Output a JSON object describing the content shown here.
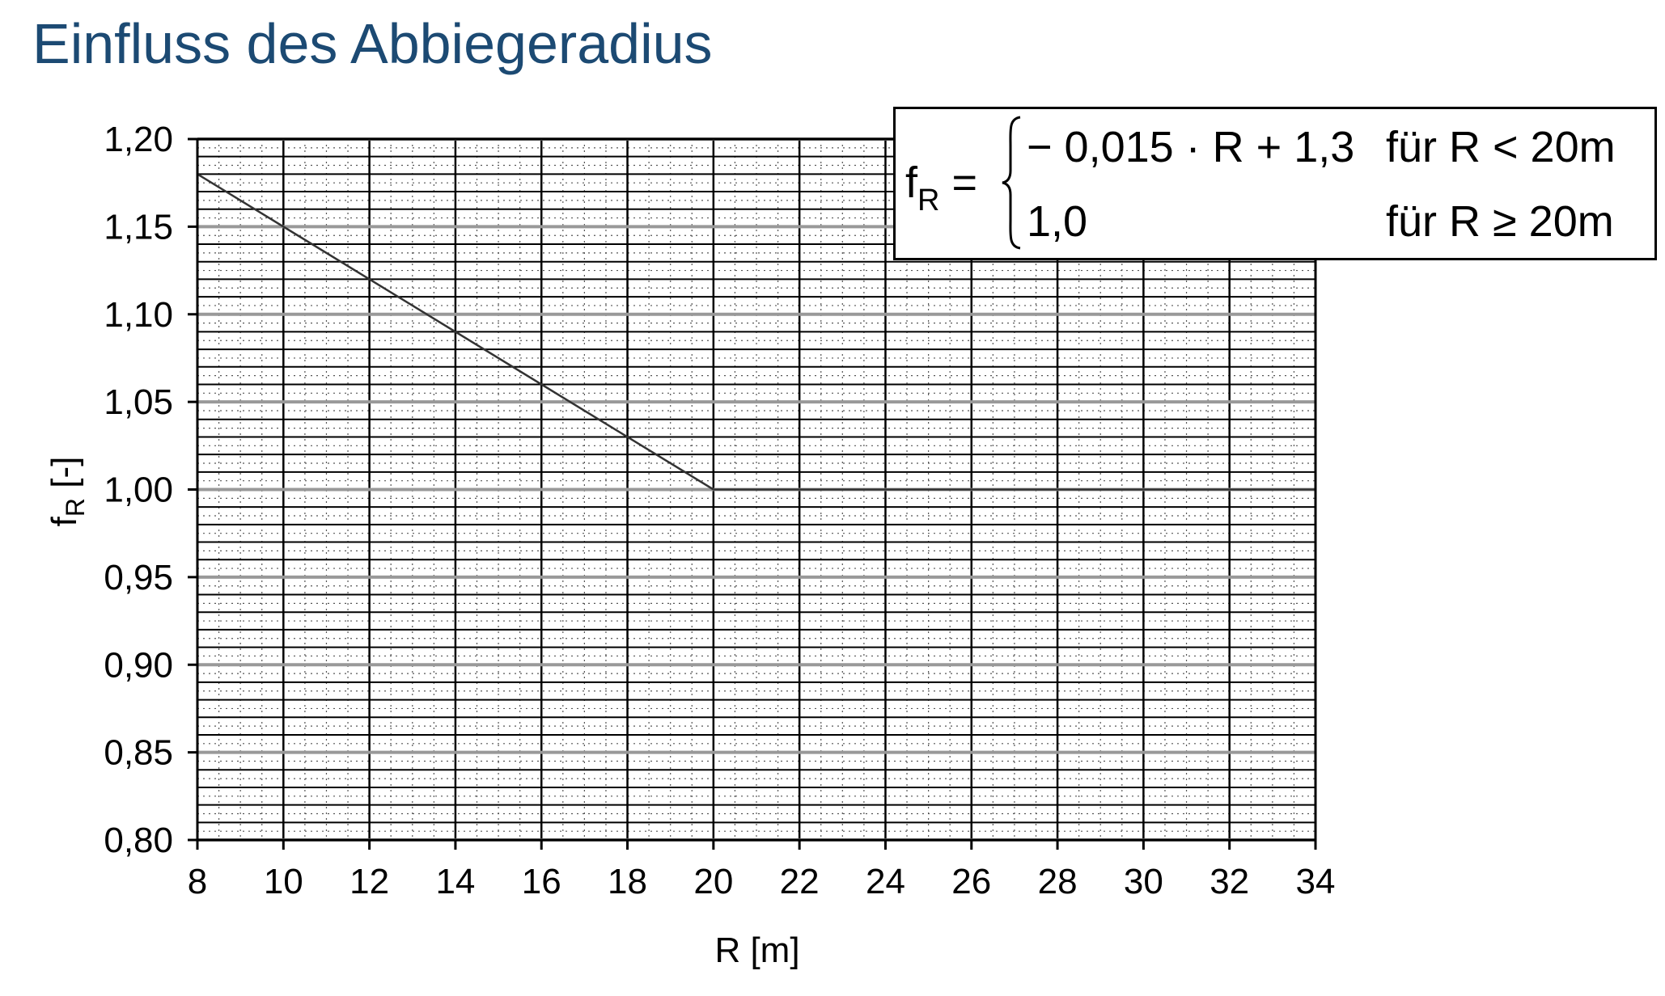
{
  "page": {
    "title": "Einfluss des Abbiegeradius"
  },
  "formula": {
    "lhs": "f",
    "lhs_sub": "R",
    "equals": "=",
    "case1_expr": "− 0,015 · R + 1,3",
    "case1_cond": "für R <  20m",
    "case2_expr": "1,0",
    "case2_cond": "für R ≥ 20m"
  },
  "chart_data": {
    "type": "line",
    "title": "",
    "xlabel": "R [m]",
    "ylabel": "f",
    "ylabel_sub": "R",
    "ylabel_suffix": " [-]",
    "xlim": [
      8,
      34
    ],
    "ylim": [
      0.8,
      1.2
    ],
    "x_ticks": [
      8,
      10,
      12,
      14,
      16,
      18,
      20,
      22,
      24,
      26,
      28,
      30,
      32,
      34
    ],
    "x_tick_labels": [
      "8",
      "10",
      "12",
      "14",
      "16",
      "18",
      "20",
      "22",
      "24",
      "26",
      "28",
      "30",
      "32",
      "34"
    ],
    "y_ticks": [
      0.8,
      0.85,
      0.9,
      0.95,
      1.0,
      1.05,
      1.1,
      1.15,
      1.2
    ],
    "y_tick_labels": [
      "0,80",
      "0,85",
      "0,90",
      "0,95",
      "1,00",
      "1,05",
      "1,10",
      "1,15",
      "1,20"
    ],
    "grid": true,
    "series": [
      {
        "x": [
          8,
          20,
          34
        ],
        "y": [
          1.18,
          1.0,
          1.0
        ],
        "color": "#333333"
      }
    ]
  },
  "colors": {
    "title": "#1c4a73",
    "grid_major": "#000000",
    "grid_minor": "#555555",
    "highlight_gridline": "#999999",
    "line": "#333333"
  }
}
